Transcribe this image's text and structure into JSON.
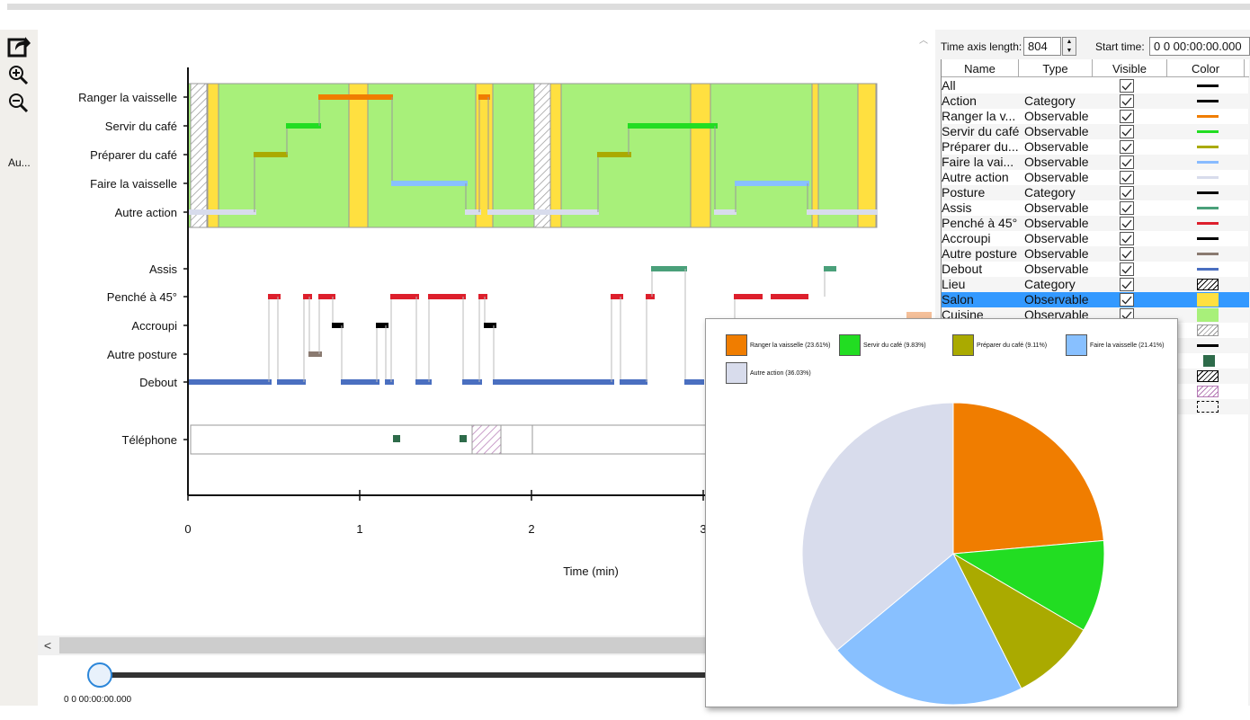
{
  "toolbar": {
    "export_icon": "export-share-icon",
    "zoom_in_icon": "zoom-in-icon",
    "zoom_out_icon": "zoom-out-icon",
    "auto_label": "Au..."
  },
  "timeline": {
    "xlabel": "Time (min)",
    "xticks": [
      "0",
      "1",
      "2",
      "3"
    ],
    "rows_top": [
      "Ranger la vaisselle",
      "Servir du café",
      "Préparer du café",
      "Faire la vaisselle",
      "Autre action"
    ],
    "rows_mid": [
      "Assis",
      "Penché à 45°",
      "Accroupi",
      "Autre posture",
      "Debout"
    ],
    "rows_bottom": [
      "Téléphone"
    ]
  },
  "player": {
    "time": "0 0 00:00:00.000"
  },
  "panel": {
    "time_axis_label": "Time axis length:",
    "time_axis_value": "804",
    "start_time_label": "Start time:",
    "start_time_value": "0 0 00:00:00.000",
    "columns": [
      "Name",
      "Type",
      "Visible",
      "Color"
    ],
    "rows": [
      {
        "name": "All",
        "type": "",
        "color": "#000000",
        "style": "line"
      },
      {
        "name": "Action",
        "type": "Category",
        "color": "#000000",
        "style": "line"
      },
      {
        "name": "Ranger la v...",
        "type": "Observable",
        "color": "#f07d00",
        "style": "line"
      },
      {
        "name": "Servir du café",
        "type": "Observable",
        "color": "#22dd22",
        "style": "line"
      },
      {
        "name": "Préparer du...",
        "type": "Observable",
        "color": "#aaaa00",
        "style": "line"
      },
      {
        "name": "Faire la vai...",
        "type": "Observable",
        "color": "#88bbff",
        "style": "line"
      },
      {
        "name": "Autre action",
        "type": "Observable",
        "color": "#d8dcec",
        "style": "line"
      },
      {
        "name": "Posture",
        "type": "Category",
        "color": "#000000",
        "style": "line"
      },
      {
        "name": "Assis",
        "type": "Observable",
        "color": "#4aa07a",
        "style": "line"
      },
      {
        "name": "Penché à 45°",
        "type": "Observable",
        "color": "#dd1f2c",
        "style": "line"
      },
      {
        "name": "Accroupi",
        "type": "Observable",
        "color": "#000000",
        "style": "line"
      },
      {
        "name": "Autre posture",
        "type": "Observable",
        "color": "#8a7a70",
        "style": "line"
      },
      {
        "name": "Debout",
        "type": "Observable",
        "color": "#4a6fc0",
        "style": "line"
      },
      {
        "name": "Lieu",
        "type": "Category",
        "color": "#000000",
        "style": "hatch"
      },
      {
        "name": "Salon",
        "type": "Observable",
        "color": "#ffe040",
        "style": "fill"
      },
      {
        "name": "Cuisine",
        "type": "Observable",
        "color": "#a8f07a",
        "style": "fill"
      },
      {
        "name": "",
        "type": "",
        "color": "#999999",
        "style": "hatch"
      },
      {
        "name": "",
        "type": "",
        "color": "#000000",
        "style": "line"
      },
      {
        "name": "",
        "type": "",
        "color": "#2e6b4a",
        "style": "square"
      },
      {
        "name": "",
        "type": "",
        "color": "#000000",
        "style": "hatch"
      },
      {
        "name": "",
        "type": "",
        "color": "#b57ab5",
        "style": "hatch"
      },
      {
        "name": "",
        "type": "",
        "color": "#000000",
        "style": "dashed"
      }
    ]
  },
  "chart_data": {
    "type": "pie",
    "slices": [
      {
        "label": "Ranger la vaisselle (23.61%)",
        "value": 23.61,
        "color": "#f07d00"
      },
      {
        "label": "Servir du café (9.83%)",
        "value": 9.83,
        "color": "#22dd22"
      },
      {
        "label": "Préparer du café (9.11%)",
        "value": 9.11,
        "color": "#aaaa00"
      },
      {
        "label": "Faire la vaisselle (21.41%)",
        "value": 21.41,
        "color": "#88c0ff"
      },
      {
        "label": "Autre action (36.03%)",
        "value": 36.03,
        "color": "#d8dcec"
      }
    ]
  }
}
